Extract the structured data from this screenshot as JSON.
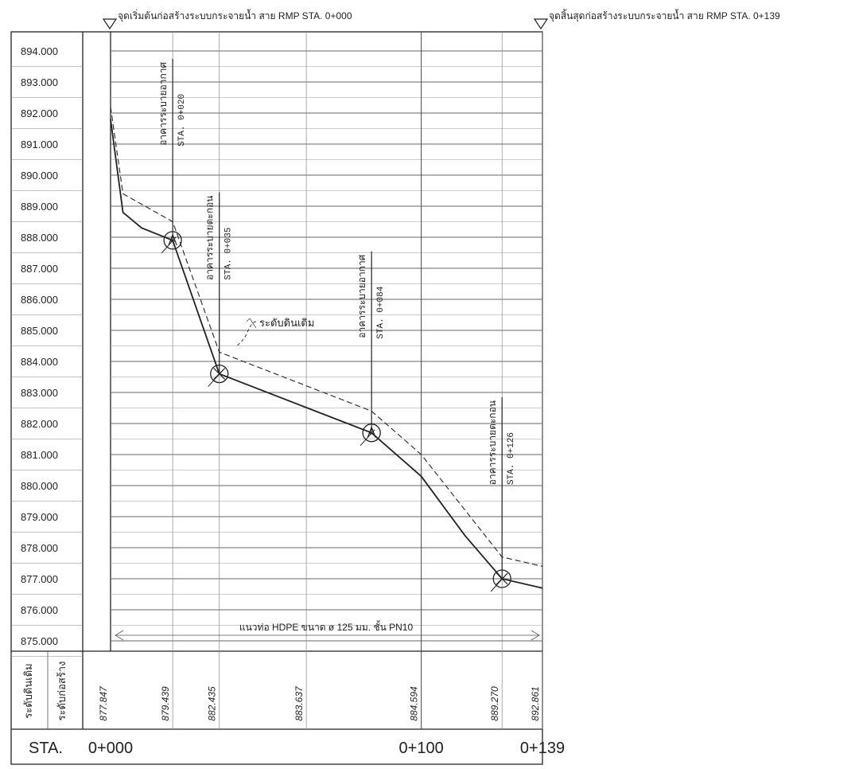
{
  "header": {
    "start_note": "จุดเริ่มต้นก่อสร้างระบบกระจายน้ำ สาย RMP STA. 0+000",
    "end_note": "จุดสิ้นสุดก่อสร้างระบบกระจายน้ำ สาย RMP STA. 0+139"
  },
  "elevation_labels": [
    "894.000",
    "893.000",
    "892.000",
    "891.000",
    "890.000",
    "889.000",
    "888.000",
    "887.000",
    "886.000",
    "885.000",
    "884.000",
    "883.000",
    "882.000",
    "881.000",
    "880.000",
    "879.000",
    "878.000",
    "877.000",
    "876.000",
    "875.000"
  ],
  "structures": [
    {
      "name": "อาคารระบายอากาศ",
      "sta": "STA. 0+020",
      "symbol": "A"
    },
    {
      "name": "อาคารระบายตะกอน",
      "sta": "STA. 0+035",
      "symbol": "X"
    },
    {
      "name": "อาคารระบายอากาศ",
      "sta": "STA. 0+084",
      "symbol": "A"
    },
    {
      "name": "อาคารระบายตะกอน",
      "sta": "STA. 0+126",
      "symbol": "X"
    }
  ],
  "ground_label": "ระดับดินเดิม",
  "pipe_label": "แนวท่อ HDPE ขนาด ø 125 มม. ชั้น PN10",
  "table": {
    "row_label_ground": "ระดับดินเดิม",
    "row_label_construct": "ระดับก่อสร้าง",
    "values": [
      "877.847",
      "879.439",
      "882.435",
      "883.637",
      "884.594",
      "889.270",
      "892.861"
    ],
    "sta_label": "STA.",
    "sta_values": [
      "0+000",
      "0+100",
      "0+139"
    ]
  },
  "chart_data": {
    "type": "line",
    "xlabel": "STA.",
    "ylim": [
      875,
      894
    ],
    "series": [
      {
        "name": "ระดับดินเดิม",
        "style": "dashed",
        "points": [
          [
            0,
            892.2
          ],
          [
            4,
            889.4
          ],
          [
            20,
            888.5
          ],
          [
            35,
            884.3
          ],
          [
            84,
            882.4
          ],
          [
            100,
            881.0
          ],
          [
            126,
            877.7
          ],
          [
            139,
            877.4
          ]
        ]
      },
      {
        "name": "",
        "style": "solid",
        "points": [
          [
            0,
            891.8
          ],
          [
            4,
            888.8
          ],
          [
            10,
            888.3
          ],
          [
            20,
            887.9
          ],
          [
            35,
            883.6
          ],
          [
            84,
            881.7
          ],
          [
            100,
            880.3
          ],
          [
            114,
            878.4
          ],
          [
            126,
            877.0
          ],
          [
            139,
            876.7
          ]
        ]
      }
    ],
    "structures_x": [
      20,
      35,
      84,
      126
    ],
    "structures_y": [
      887.9,
      883.6,
      881.7,
      877.0
    ],
    "data_label_x": [
      0,
      20,
      35,
      63,
      100,
      126,
      139
    ]
  }
}
